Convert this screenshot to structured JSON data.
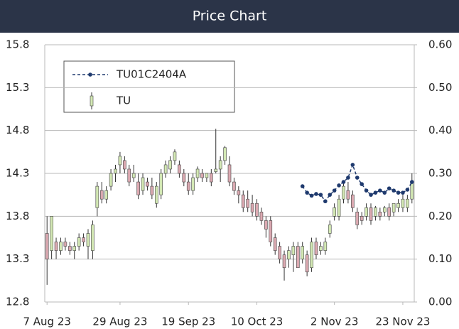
{
  "chart_data": {
    "type": "candlestick",
    "title": "Price Chart",
    "x": [
      "2023-08-07",
      "2023-08-08",
      "2023-08-09",
      "2023-08-10",
      "2023-08-11",
      "2023-08-14",
      "2023-08-15",
      "2023-08-16",
      "2023-08-17",
      "2023-08-18",
      "2023-08-21",
      "2023-08-22",
      "2023-08-23",
      "2023-08-24",
      "2023-08-25",
      "2023-08-28",
      "2023-08-29",
      "2023-08-30",
      "2023-08-31",
      "2023-09-01",
      "2023-09-04",
      "2023-09-05",
      "2023-09-06",
      "2023-09-07",
      "2023-09-08",
      "2023-09-11",
      "2023-09-12",
      "2023-09-13",
      "2023-09-14",
      "2023-09-15",
      "2023-09-18",
      "2023-09-19",
      "2023-09-20",
      "2023-09-21",
      "2023-09-22",
      "2023-09-25",
      "2023-09-26",
      "2023-09-27",
      "2023-09-28",
      "2023-09-29",
      "2023-10-02",
      "2023-10-03",
      "2023-10-04",
      "2023-10-05",
      "2023-10-06",
      "2023-10-09",
      "2023-10-10",
      "2023-10-11",
      "2023-10-12",
      "2023-10-13",
      "2023-10-16",
      "2023-10-17",
      "2023-10-18",
      "2023-10-19",
      "2023-10-20",
      "2023-10-23",
      "2023-10-24",
      "2023-10-25",
      "2023-10-26",
      "2023-10-27",
      "2023-10-30",
      "2023-10-31",
      "2023-11-01",
      "2023-11-02",
      "2023-11-03",
      "2023-11-06",
      "2023-11-07",
      "2023-11-08",
      "2023-11-09",
      "2023-11-10",
      "2023-11-13",
      "2023-11-14",
      "2023-11-15",
      "2023-11-16",
      "2023-11-17",
      "2023-11-20",
      "2023-11-21",
      "2023-11-22",
      "2023-11-23",
      "2023-11-24",
      "2023-11-27"
    ],
    "xticks": [
      {
        "value": "2023-08-07",
        "label": "7 Aug 23"
      },
      {
        "value": "2023-08-29",
        "label": "29 Aug 23"
      },
      {
        "value": "2023-09-19",
        "label": "19 Sep 23"
      },
      {
        "value": "2023-10-10",
        "label": "10 Oct 23"
      },
      {
        "value": "2023-11-02",
        "label": "2 Nov 23"
      },
      {
        "value": "2023-11-23",
        "label": "23 Nov 23"
      }
    ],
    "ylim": [
      12.8,
      15.8
    ],
    "yticks": [
      12.8,
      13.3,
      13.8,
      14.3,
      14.8,
      15.3,
      15.8
    ],
    "y2lim": [
      0,
      0.6
    ],
    "y2ticks": [
      {
        "value": 0,
        "label": "0.00"
      },
      {
        "value": 0.1,
        "label": "0.10"
      },
      {
        "value": 0.2,
        "label": "0.20"
      },
      {
        "value": 0.3,
        "label": "0.30"
      },
      {
        "value": 0.4,
        "label": "0.40"
      },
      {
        "value": 0.5,
        "label": "0.50"
      },
      {
        "value": 0.6,
        "label": "0.60"
      }
    ],
    "grid": true,
    "legend": "top-left",
    "series": [
      {
        "name": "TU01C2404A",
        "type": "line",
        "axis": "y2",
        "color": "#1f3a6e",
        "values": [
          null,
          null,
          null,
          null,
          null,
          null,
          null,
          null,
          null,
          null,
          null,
          null,
          null,
          null,
          null,
          null,
          null,
          null,
          null,
          null,
          null,
          null,
          null,
          null,
          null,
          null,
          null,
          null,
          null,
          null,
          null,
          null,
          null,
          null,
          null,
          null,
          null,
          null,
          null,
          null,
          null,
          null,
          null,
          null,
          null,
          null,
          null,
          null,
          null,
          null,
          null,
          null,
          null,
          null,
          null,
          null,
          0.27,
          0.255,
          0.248,
          0.252,
          0.25,
          0.235,
          0.25,
          0.26,
          0.272,
          0.28,
          0.29,
          0.32,
          0.29,
          0.275,
          0.26,
          0.25,
          0.255,
          0.26,
          0.255,
          0.265,
          0.26,
          0.255,
          0.255,
          0.262,
          0.28
        ]
      },
      {
        "name": "TU",
        "type": "candlestick",
        "up_color": "#d3e8b4",
        "down_color": "#dba9b1",
        "open": [
          13.6,
          13.4,
          13.5,
          13.4,
          13.5,
          13.45,
          13.4,
          13.45,
          13.55,
          13.45,
          13.4,
          13.9,
          14.1,
          14.0,
          14.15,
          14.3,
          14.4,
          14.45,
          14.35,
          14.25,
          14.2,
          14.1,
          14.2,
          14.15,
          13.95,
          14.05,
          14.3,
          14.35,
          14.45,
          14.4,
          14.3,
          14.2,
          14.1,
          14.25,
          14.3,
          14.25,
          14.3,
          14.32,
          14.35,
          14.45,
          14.4,
          14.2,
          14.1,
          14.05,
          14.0,
          13.95,
          13.95,
          13.85,
          13.75,
          13.75,
          13.55,
          13.45,
          13.35,
          13.3,
          13.35,
          13.45,
          13.3,
          13.35,
          13.2,
          13.5,
          13.4,
          13.4,
          13.6,
          13.8,
          13.8,
          14.0,
          14.1,
          14.05,
          13.85,
          13.8,
          13.8,
          13.9,
          13.8,
          13.85,
          13.85,
          13.9,
          13.85,
          13.9,
          13.9,
          13.9,
          14.0
        ],
        "high": [
          13.8,
          13.8,
          13.55,
          13.55,
          13.55,
          13.5,
          13.5,
          13.6,
          13.6,
          13.65,
          13.75,
          14.2,
          14.2,
          14.15,
          14.35,
          14.4,
          14.55,
          14.5,
          14.4,
          14.4,
          14.3,
          14.3,
          14.25,
          14.25,
          14.2,
          14.35,
          14.45,
          14.5,
          14.58,
          14.45,
          14.35,
          14.3,
          14.3,
          14.38,
          14.35,
          14.3,
          14.35,
          14.82,
          14.5,
          14.62,
          14.5,
          14.25,
          14.15,
          14.1,
          14.1,
          14.05,
          14.0,
          13.9,
          13.8,
          13.8,
          13.6,
          13.5,
          13.4,
          13.45,
          13.5,
          13.5,
          13.5,
          13.4,
          13.55,
          13.55,
          13.5,
          13.55,
          13.75,
          13.95,
          14.05,
          14.2,
          14.2,
          14.1,
          13.9,
          13.85,
          13.95,
          13.95,
          13.92,
          13.9,
          13.92,
          13.95,
          13.95,
          14.0,
          14.05,
          14.05,
          14.3
        ],
        "low": [
          13.0,
          13.3,
          13.3,
          13.35,
          13.4,
          13.35,
          13.3,
          13.4,
          13.45,
          13.3,
          13.3,
          13.8,
          13.95,
          13.95,
          14.1,
          14.2,
          14.3,
          14.3,
          14.15,
          14.2,
          14.0,
          14.05,
          14.1,
          14.0,
          13.9,
          14.0,
          14.25,
          14.3,
          14.4,
          14.25,
          14.15,
          14.05,
          14.05,
          14.2,
          14.2,
          14.2,
          14.15,
          14.3,
          14.2,
          14.4,
          14.15,
          14.05,
          13.95,
          13.85,
          13.85,
          13.8,
          13.75,
          13.7,
          13.55,
          13.45,
          13.35,
          13.25,
          13.05,
          13.2,
          13.15,
          13.2,
          13.25,
          13.1,
          13.15,
          13.3,
          13.35,
          13.35,
          13.55,
          13.75,
          13.75,
          13.95,
          13.95,
          13.85,
          13.65,
          13.7,
          13.75,
          13.7,
          13.75,
          13.75,
          13.8,
          13.75,
          13.8,
          13.85,
          13.85,
          13.85,
          13.95
        ],
        "close": [
          13.3,
          13.8,
          13.4,
          13.5,
          13.45,
          13.4,
          13.45,
          13.55,
          13.5,
          13.6,
          13.7,
          14.15,
          14.0,
          14.1,
          14.3,
          14.35,
          14.5,
          14.35,
          14.2,
          14.3,
          14.05,
          14.25,
          14.15,
          14.05,
          14.15,
          14.3,
          14.4,
          14.45,
          14.55,
          14.3,
          14.2,
          14.1,
          14.25,
          14.35,
          14.25,
          14.3,
          14.2,
          14.35,
          14.45,
          14.6,
          14.2,
          14.1,
          14.05,
          13.9,
          13.9,
          13.85,
          13.8,
          13.75,
          13.65,
          13.5,
          13.4,
          13.3,
          13.2,
          13.4,
          13.45,
          13.2,
          13.45,
          13.15,
          13.5,
          13.35,
          13.45,
          13.5,
          13.7,
          13.9,
          14.0,
          14.15,
          14.0,
          13.9,
          13.7,
          13.75,
          13.9,
          13.75,
          13.9,
          13.8,
          13.9,
          13.8,
          13.95,
          13.95,
          14.0,
          14.0,
          14.2
        ]
      }
    ]
  }
}
